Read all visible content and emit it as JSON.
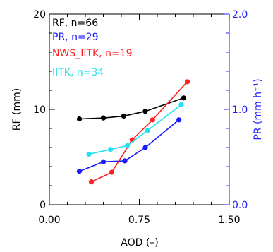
{
  "chart_data": {
    "type": "line",
    "xlabel": "AOD (–)",
    "ylabel": "RF (mm)",
    "y2label": "PR (mm h⁻¹)",
    "xlim": [
      0.0,
      1.5
    ],
    "ylim": [
      0,
      20
    ],
    "y2lim": [
      0.0,
      2.0
    ],
    "x_ticks": [
      0.0,
      0.75,
      1.5
    ],
    "x_tick_labels": [
      "0.00",
      "0.75",
      "1.50"
    ],
    "y_ticks": [
      0,
      10,
      20
    ],
    "y_tick_labels": [
      "0",
      "10",
      "20"
    ],
    "y2_ticks": [
      0.0,
      1.0,
      2.0
    ],
    "y2_tick_labels": [
      "0.0",
      "1.0",
      "2.0"
    ],
    "axis_color_right": "#2020ff",
    "legend_position": "top-left",
    "series": [
      {
        "name": "RF, n=66",
        "color": "#000000",
        "axis": "left",
        "x": [
          0.25,
          0.45,
          0.62,
          0.8,
          1.12
        ],
        "y": [
          9.0,
          9.1,
          9.3,
          9.8,
          11.2
        ]
      },
      {
        "name": "PR, n=29",
        "color": "#1a1aff",
        "axis": "right",
        "x": [
          0.25,
          0.45,
          0.63,
          0.8,
          1.08
        ],
        "y": [
          0.35,
          0.45,
          0.46,
          0.6,
          0.89
        ]
      },
      {
        "name": "NWS_IITK, n=19",
        "color": "#ff2020",
        "axis": "left",
        "x": [
          0.35,
          0.52,
          0.69,
          0.86,
          1.15
        ],
        "y": [
          2.4,
          3.4,
          6.8,
          8.9,
          12.9
        ]
      },
      {
        "name": "IITK, n=34",
        "color": "#22e0f0",
        "axis": "right",
        "x": [
          0.33,
          0.51,
          0.65,
          0.82,
          1.1
        ],
        "y": [
          0.53,
          0.58,
          0.62,
          0.78,
          1.05
        ]
      }
    ]
  }
}
